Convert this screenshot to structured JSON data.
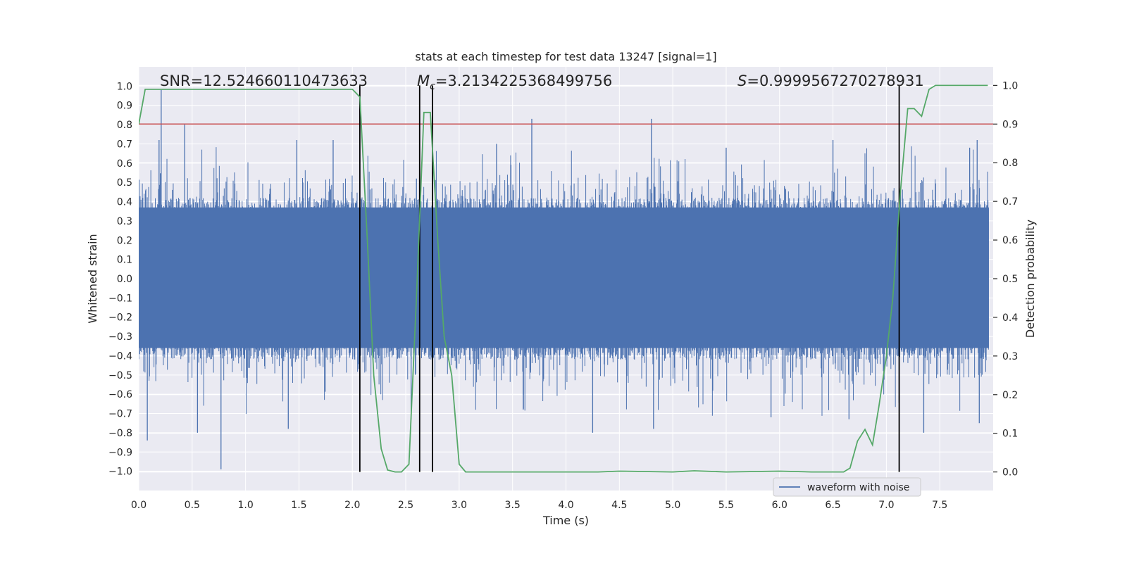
{
  "chart_data": {
    "type": "line",
    "title": "stats at each timestep for test data 13247 [signal=1]",
    "xlabel": "Time (s)",
    "ylabel": "Whitened strain",
    "y2label": "Detection probability",
    "xlim": [
      0.0,
      8.0
    ],
    "ylim": [
      -1.1,
      1.1
    ],
    "y2lim": [
      -0.048,
      1.048
    ],
    "xticks": [
      "0.0",
      "0.5",
      "1.0",
      "1.5",
      "2.0",
      "2.5",
      "3.0",
      "3.5",
      "4.0",
      "4.5",
      "5.0",
      "5.5",
      "6.0",
      "6.5",
      "7.0",
      "7.5"
    ],
    "yticks": [
      "1.0",
      "0.9",
      "0.8",
      "0.7",
      "0.6",
      "0.5",
      "0.4",
      "0.3",
      "0.2",
      "0.1",
      "0.0",
      "-0.1",
      "-0.2",
      "-0.3",
      "-0.4",
      "-0.5",
      "-0.6",
      "-0.7",
      "-0.8",
      "-0.9",
      "-1.0"
    ],
    "y2ticks": [
      "0.0",
      "0.1",
      "0.2",
      "0.3",
      "0.4",
      "0.5",
      "0.6",
      "0.7",
      "0.8",
      "0.9",
      "1.0"
    ],
    "grid": true,
    "legend": {
      "position": "lower-center",
      "entries": [
        "waveform with noise"
      ]
    },
    "annotations": {
      "snr": "SNR=12.524660110473633",
      "mc_symbol": "M",
      "mc_sub": "c",
      "mc_value": "=3.2134225368499756",
      "s_symbol": "S",
      "s_value": "=0.9999567270278931"
    },
    "threshold": 0.9,
    "vlines": [
      2.07,
      2.63,
      2.75,
      7.12
    ],
    "waveform": {
      "name": "waveform with noise",
      "color": "#4c72b0",
      "spikes": [
        {
          "x": 0.21,
          "y": 0.98
        },
        {
          "x": 0.43,
          "y": 0.8
        },
        {
          "x": 0.19,
          "y": 0.72
        },
        {
          "x": 0.77,
          "y": -0.99
        },
        {
          "x": 0.55,
          "y": -0.8
        },
        {
          "x": 0.08,
          "y": -0.84
        },
        {
          "x": 1.48,
          "y": 0.72
        },
        {
          "x": 1.82,
          "y": 0.72
        },
        {
          "x": 2.07,
          "y": 0.95
        },
        {
          "x": 1.4,
          "y": -0.78
        },
        {
          "x": 2.55,
          "y": -0.73
        },
        {
          "x": 2.6,
          "y": 0.52
        },
        {
          "x": 3.68,
          "y": 0.83
        },
        {
          "x": 3.6,
          "y": -0.68
        },
        {
          "x": 4.25,
          "y": -0.8
        },
        {
          "x": 4.8,
          "y": 0.83
        },
        {
          "x": 4.82,
          "y": -0.78
        },
        {
          "x": 5.5,
          "y": 0.68
        },
        {
          "x": 6.5,
          "y": 0.72
        },
        {
          "x": 6.65,
          "y": -0.73
        },
        {
          "x": 7.35,
          "y": -0.8
        },
        {
          "x": 7.85,
          "y": 0.72
        },
        {
          "x": 7.87,
          "y": -0.75
        },
        {
          "x": 5.92,
          "y": -0.72
        },
        {
          "x": 3.35,
          "y": 0.7
        },
        {
          "x": 7.78,
          "y": 0.68
        }
      ]
    },
    "detection_probability": {
      "color": "#55a868",
      "x": [
        0.0,
        0.06,
        0.2,
        0.5,
        1.0,
        1.5,
        2.0,
        2.07,
        2.14,
        2.2,
        2.27,
        2.33,
        2.4,
        2.46,
        2.53,
        2.6,
        2.67,
        2.73,
        2.8,
        2.86,
        2.93,
        3.0,
        3.06,
        3.5,
        4.0,
        4.3,
        4.5,
        5.0,
        5.2,
        5.5,
        6.0,
        6.3,
        6.6,
        6.66,
        6.73,
        6.8,
        6.87,
        6.93,
        7.0,
        7.06,
        7.13,
        7.2,
        7.26,
        7.33,
        7.4,
        7.46,
        7.6,
        7.95
      ],
      "y": [
        0.9,
        0.99,
        0.99,
        0.99,
        0.99,
        0.99,
        0.99,
        0.97,
        0.6,
        0.25,
        0.06,
        0.005,
        0.0,
        0.0,
        0.02,
        0.45,
        0.93,
        0.93,
        0.6,
        0.35,
        0.25,
        0.02,
        0.0,
        0.0,
        0.0,
        0.0,
        0.002,
        0.0,
        0.003,
        0.0,
        0.002,
        0.0,
        0.0,
        0.01,
        0.08,
        0.11,
        0.07,
        0.17,
        0.3,
        0.45,
        0.72,
        0.94,
        0.94,
        0.92,
        0.99,
        1.0,
        1.0,
        1.0
      ]
    }
  }
}
